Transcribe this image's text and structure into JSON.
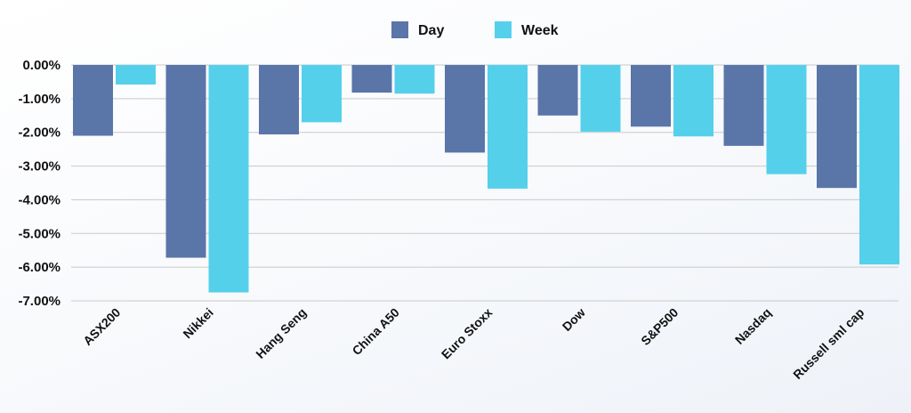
{
  "chart_data": {
    "type": "bar",
    "categories": [
      "ASX200",
      "Nikkei",
      "Hang Seng",
      "China A50",
      "Euro Stoxx",
      "Dow",
      "S&P500",
      "Nasdaq",
      "Russell sml cap"
    ],
    "series": [
      {
        "name": "Day",
        "color": "#5a75a8",
        "values": [
          -2.1,
          -5.72,
          -2.06,
          -0.82,
          -2.6,
          -1.5,
          -1.83,
          -2.4,
          -3.65
        ]
      },
      {
        "name": "Week",
        "color": "#55d0eb",
        "values": [
          -0.58,
          -6.75,
          -1.7,
          -0.85,
          -3.67,
          -1.98,
          -2.12,
          -3.24,
          -5.92
        ]
      }
    ],
    "ylim": [
      -7,
      0
    ],
    "yticks": [
      0,
      -1,
      -2,
      -3,
      -4,
      -5,
      -6,
      -7
    ],
    "ytick_labels": [
      "0.00%",
      "-1.00%",
      "-2.00%",
      "-3.00%",
      "-4.00%",
      "-5.00%",
      "-6.00%",
      "-7.00%"
    ],
    "grid": true,
    "legend_position": "top-center",
    "title": "",
    "xlabel": "",
    "ylabel": ""
  }
}
